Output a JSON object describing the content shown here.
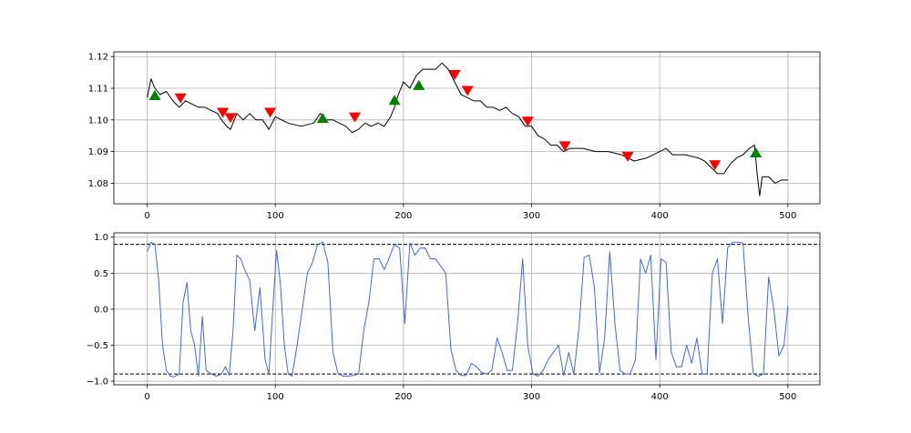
{
  "figure": {
    "background": "#ffffff"
  },
  "chart_data": [
    {
      "type": "line",
      "title": "",
      "xlabel": "",
      "ylabel": "",
      "xlim": [
        -26,
        525
      ],
      "ylim": [
        1.0735,
        1.1215
      ],
      "grid": true,
      "xticks": [
        0,
        100,
        200,
        300,
        400,
        500
      ],
      "xtick_labels": [
        "0",
        "100",
        "200",
        "300",
        "400",
        "500"
      ],
      "yticks": [
        1.08,
        1.09,
        1.1,
        1.11,
        1.12
      ],
      "ytick_labels": [
        "1.08",
        "1.09",
        "1.10",
        "1.11",
        "1.12"
      ],
      "line_color": "#000000",
      "series": [
        {
          "x": [
            0,
            3,
            6,
            10,
            15,
            20,
            25,
            30,
            35,
            40,
            45,
            50,
            55,
            58,
            62,
            65,
            70,
            75,
            80,
            85,
            90,
            95,
            100,
            110,
            120,
            130,
            135,
            140,
            145,
            150,
            155,
            160,
            165,
            170,
            175,
            180,
            185,
            190,
            193,
            196,
            200,
            205,
            210,
            215,
            220,
            225,
            230,
            235,
            240,
            245,
            250,
            255,
            260,
            265,
            270,
            275,
            280,
            285,
            290,
            295,
            300,
            305,
            310,
            315,
            320,
            325,
            330,
            340,
            350,
            360,
            370,
            375,
            380,
            390,
            400,
            405,
            410,
            420,
            430,
            435,
            440,
            445,
            450,
            455,
            460,
            465,
            470,
            474,
            476,
            478,
            480,
            485,
            490,
            495,
            500
          ],
          "y": [
            1.107,
            1.113,
            1.11,
            1.108,
            1.109,
            1.106,
            1.104,
            1.106,
            1.105,
            1.104,
            1.104,
            1.103,
            1.102,
            1.1,
            1.098,
            1.097,
            1.102,
            1.1,
            1.102,
            1.1,
            1.1,
            1.097,
            1.101,
            1.099,
            1.098,
            1.099,
            1.102,
            1.1,
            1.1,
            1.099,
            1.098,
            1.096,
            1.097,
            1.099,
            1.098,
            1.099,
            1.098,
            1.101,
            1.104,
            1.108,
            1.112,
            1.11,
            1.114,
            1.116,
            1.116,
            1.116,
            1.118,
            1.116,
            1.112,
            1.108,
            1.107,
            1.106,
            1.106,
            1.104,
            1.104,
            1.103,
            1.104,
            1.102,
            1.101,
            1.098,
            1.098,
            1.095,
            1.094,
            1.092,
            1.092,
            1.09,
            1.091,
            1.091,
            1.09,
            1.09,
            1.089,
            1.088,
            1.087,
            1.088,
            1.09,
            1.091,
            1.089,
            1.089,
            1.088,
            1.087,
            1.085,
            1.083,
            1.083,
            1.086,
            1.088,
            1.089,
            1.091,
            1.092,
            1.083,
            1.076,
            1.082,
            1.082,
            1.08,
            1.081,
            1.081
          ]
        }
      ],
      "buy_marker_color": "#008000",
      "sell_marker_color": "#ff0000",
      "buy_signals": [
        {
          "x": 6,
          "y": 1.1077
        },
        {
          "x": 137,
          "y": 1.1005
        },
        {
          "x": 193,
          "y": 1.1062
        },
        {
          "x": 212,
          "y": 1.1109
        },
        {
          "x": 475,
          "y": 1.0896
        }
      ],
      "sell_signals": [
        {
          "x": 26,
          "y": 1.1069
        },
        {
          "x": 59,
          "y": 1.1024
        },
        {
          "x": 65,
          "y": 1.1007
        },
        {
          "x": 96,
          "y": 1.1024
        },
        {
          "x": 162,
          "y": 1.1009
        },
        {
          "x": 240,
          "y": 1.1143
        },
        {
          "x": 250,
          "y": 1.1093
        },
        {
          "x": 297,
          "y": 1.0996
        },
        {
          "x": 326,
          "y": 1.0918
        },
        {
          "x": 375,
          "y": 1.0885
        },
        {
          "x": 443,
          "y": 1.0858
        }
      ]
    },
    {
      "type": "line",
      "title": "",
      "xlabel": "",
      "ylabel": "",
      "xlim": [
        -26,
        525
      ],
      "ylim": [
        -1.05,
        1.06
      ],
      "grid": true,
      "xticks": [
        0,
        100,
        200,
        300,
        400,
        500
      ],
      "xtick_labels": [
        "0",
        "100",
        "200",
        "300",
        "400",
        "500"
      ],
      "yticks": [
        -1.0,
        -0.5,
        0.0,
        0.5,
        1.0
      ],
      "ytick_labels": [
        "−1.0",
        "−0.5",
        "0.0",
        "0.5",
        "1.0"
      ],
      "line_color": "#4169e1",
      "threshold_color": "#000000",
      "thresholds": [
        0.9,
        -0.9
      ],
      "series": [
        {
          "x": [
            0,
            3,
            6,
            9,
            12,
            15,
            18,
            21,
            25,
            28,
            31,
            34,
            37,
            40,
            43,
            46,
            50,
            54,
            58,
            61,
            64,
            67,
            70,
            73,
            76,
            80,
            84,
            88,
            92,
            95,
            98,
            101,
            104,
            107,
            110,
            113,
            117,
            121,
            125,
            129,
            133,
            137,
            141,
            145,
            149,
            153,
            157,
            161,
            165,
            169,
            173,
            177,
            181,
            185,
            189,
            193,
            197,
            201,
            205,
            209,
            213,
            217,
            221,
            225,
            229,
            233,
            237,
            241,
            245,
            249,
            253,
            257,
            261,
            265,
            269,
            273,
            277,
            281,
            285,
            289,
            293,
            297,
            301,
            305,
            309,
            313,
            317,
            321,
            325,
            329,
            333,
            337,
            341,
            345,
            349,
            353,
            357,
            361,
            365,
            369,
            373,
            377,
            381,
            385,
            389,
            393,
            397,
            401,
            405,
            409,
            413,
            417,
            421,
            425,
            429,
            433,
            437,
            441,
            445,
            449,
            453,
            457,
            461,
            465,
            469,
            473,
            477,
            481,
            485,
            489,
            493,
            497,
            500
          ],
          "y": [
            0.8,
            0.93,
            0.9,
            0.4,
            -0.5,
            -0.85,
            -0.93,
            -0.94,
            -0.9,
            0.1,
            0.37,
            -0.3,
            -0.5,
            -0.93,
            -0.1,
            -0.85,
            -0.9,
            -0.93,
            -0.9,
            -0.8,
            -0.92,
            -0.3,
            0.75,
            0.7,
            0.55,
            0.4,
            -0.3,
            0.3,
            -0.7,
            -0.9,
            0.0,
            0.82,
            0.35,
            -0.5,
            -0.9,
            -0.93,
            -0.5,
            0.0,
            0.5,
            0.65,
            0.9,
            0.93,
            0.65,
            -0.6,
            -0.9,
            -0.93,
            -0.93,
            -0.92,
            -0.9,
            -0.3,
            0.1,
            0.7,
            0.7,
            0.55,
            0.72,
            0.9,
            0.85,
            -0.2,
            0.92,
            0.75,
            0.85,
            0.85,
            0.7,
            0.7,
            0.6,
            0.5,
            -0.55,
            -0.85,
            -0.92,
            -0.92,
            -0.75,
            -0.8,
            -0.88,
            -0.9,
            -0.85,
            -0.4,
            -0.6,
            -0.85,
            -0.85,
            -0.2,
            0.7,
            -0.5,
            -0.9,
            -0.93,
            -0.85,
            -0.7,
            -0.6,
            -0.5,
            -0.92,
            -0.6,
            -0.9,
            -0.25,
            0.72,
            0.75,
            0.3,
            -0.88,
            -0.4,
            0.8,
            -0.2,
            -0.85,
            -0.9,
            -0.9,
            -0.7,
            0.7,
            0.5,
            0.75,
            -0.7,
            0.7,
            0.65,
            -0.6,
            -0.8,
            -0.8,
            -0.5,
            -0.75,
            -0.4,
            -0.9,
            -0.9,
            0.5,
            0.7,
            -0.2,
            0.85,
            0.93,
            0.93,
            0.92,
            -0.1,
            -0.9,
            -0.93,
            -0.9,
            0.45,
            0.0,
            -0.65,
            -0.5,
            0.05
          ]
        }
      ]
    }
  ]
}
